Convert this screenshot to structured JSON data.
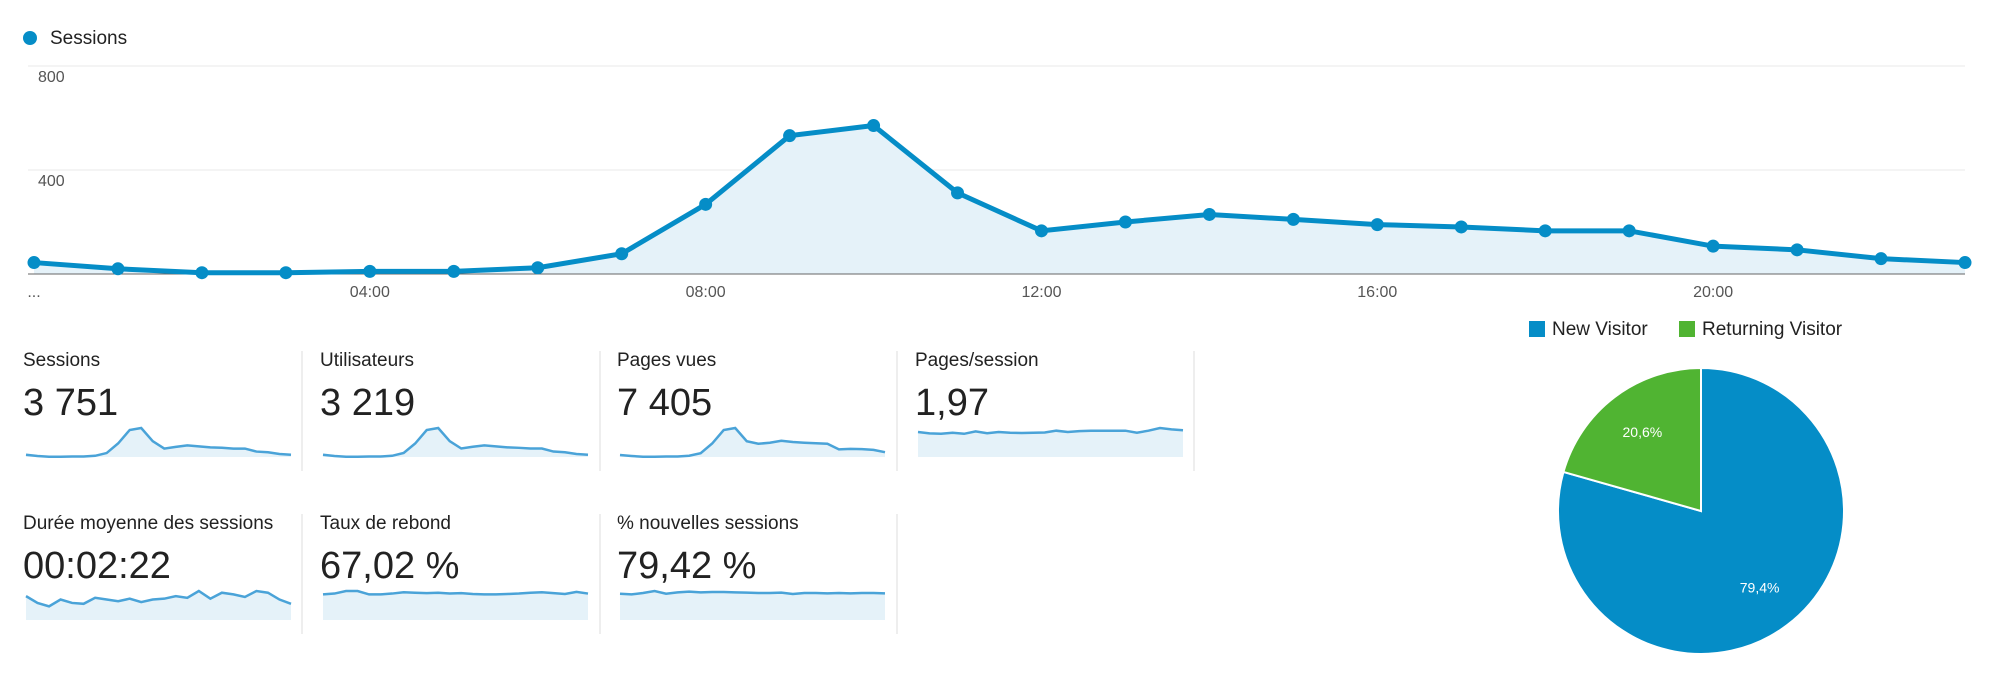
{
  "chart_data": {
    "type": "line",
    "legend": "Sessions",
    "color": "#058dc7",
    "categories": [
      "...",
      null,
      null,
      null,
      "04:00",
      null,
      null,
      null,
      "08:00",
      null,
      null,
      null,
      "12:00",
      null,
      null,
      null,
      "16:00",
      null,
      null,
      null,
      "20:00",
      null,
      null,
      null
    ],
    "values": [
      44,
      20,
      5,
      5,
      10,
      10,
      24,
      78,
      268,
      532,
      571,
      312,
      166,
      200,
      229,
      210,
      190,
      181,
      166,
      166,
      107,
      93,
      59,
      44
    ],
    "ylim": [
      0,
      800
    ],
    "yticks": [
      400,
      800
    ],
    "grid": true
  },
  "metrics": [
    {
      "label": "Sessions",
      "value": "3 751",
      "spark": [
        44,
        20,
        5,
        5,
        10,
        10,
        24,
        78,
        268,
        532,
        571,
        312,
        166,
        200,
        229,
        210,
        190,
        181,
        166,
        166,
        107,
        93,
        59,
        44
      ]
    },
    {
      "label": "Utilisateurs",
      "value": "3 219",
      "spark": [
        40,
        18,
        5,
        5,
        9,
        9,
        21,
        70,
        235,
        470,
        505,
        275,
        148,
        178,
        203,
        186,
        168,
        160,
        147,
        147,
        95,
        82,
        52,
        39
      ]
    },
    {
      "label": "Pages vues",
      "value": "7 405",
      "spark": [
        80,
        40,
        10,
        10,
        20,
        20,
        48,
        150,
        530,
        1060,
        1140,
        620,
        520,
        560,
        640,
        590,
        560,
        540,
        520,
        300,
        320,
        310,
        280,
        190
      ]
    },
    {
      "label": "Pages/session",
      "value": "1,97",
      "spark": [
        1.85,
        1.75,
        1.72,
        1.8,
        1.72,
        1.9,
        1.76,
        1.85,
        1.8,
        1.78,
        1.8,
        1.82,
        1.95,
        1.85,
        1.92,
        1.95,
        1.95,
        1.95,
        1.95,
        1.8,
        1.95,
        2.15,
        2.05,
        1.98
      ]
    },
    {
      "label": "Durée moyenne des sessions",
      "value": "00:02:22",
      "spark": [
        140,
        100,
        80,
        120,
        100,
        95,
        130,
        120,
        110,
        125,
        105,
        120,
        125,
        140,
        130,
        170,
        125,
        160,
        150,
        135,
        170,
        160,
        120,
        95
      ]
    },
    {
      "label": "Taux de rebond",
      "value": "67,02 %",
      "spark": [
        60,
        62,
        68,
        68,
        60,
        60,
        62,
        65,
        64,
        63,
        64,
        62,
        63,
        61,
        60,
        60,
        61,
        62,
        64,
        65,
        63,
        61,
        66,
        62
      ]
    },
    {
      "label": "% nouvelles sessions",
      "value": "79,42 %",
      "spark": [
        78,
        76,
        80,
        86,
        78,
        82,
        84,
        82,
        83,
        83,
        82,
        81,
        80,
        80,
        81,
        77,
        80,
        80,
        79,
        80,
        79,
        80,
        80,
        79
      ]
    }
  ],
  "pie": {
    "type": "pie",
    "categories": [
      "New Visitor",
      "Returning Visitor"
    ],
    "values": [
      79.4,
      20.6
    ],
    "value_labels": [
      "79,4%",
      "20,6%"
    ],
    "colors": [
      "#058dc7",
      "#50b432"
    ]
  }
}
